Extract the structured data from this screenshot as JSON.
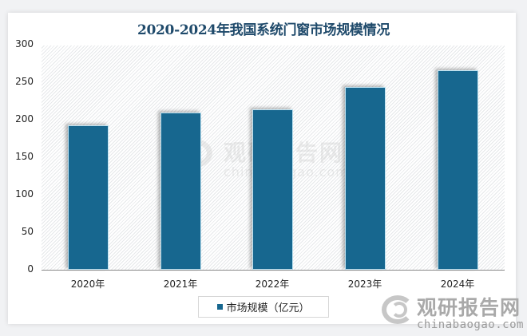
{
  "chart_data": {
    "type": "bar",
    "title": "2020-2024年我国系统门窗市场规模情况",
    "categories": [
      "2020年",
      "2021年",
      "2022年",
      "2023年",
      "2024年"
    ],
    "series": [
      {
        "name": "市场规模（亿元）",
        "values": [
          193,
          210,
          215,
          245,
          267
        ]
      }
    ],
    "xlabel": "",
    "ylabel": "",
    "ylim": [
      0,
      300
    ],
    "yticks": [
      "0",
      "50",
      "100",
      "150",
      "200",
      "250",
      "300"
    ],
    "grid": false,
    "legend_position": "bottom",
    "bar_color": "#17678f"
  },
  "watermark": {
    "brand_cn": "观研报告网",
    "brand_en": "chinabaogao.com"
  }
}
